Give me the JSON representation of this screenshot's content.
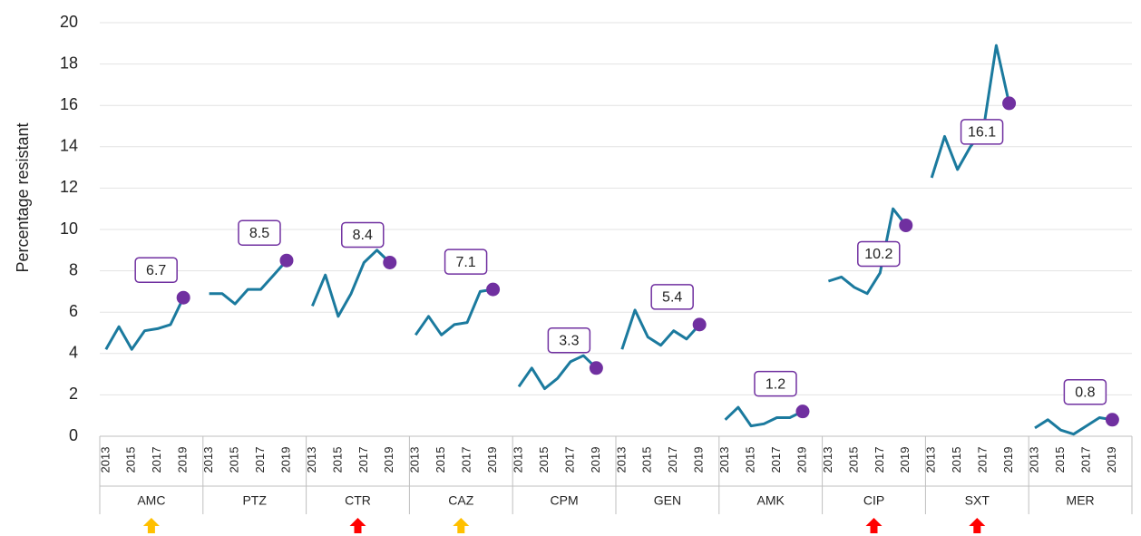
{
  "chart_data": {
    "type": "line",
    "y_label": "Percentage resistant",
    "ylim": [
      0,
      20
    ],
    "yticks": [
      0,
      2,
      4,
      6,
      8,
      10,
      12,
      14,
      16,
      18,
      20
    ],
    "grid": true,
    "line_color": "#1b7a9e",
    "point_color": "#7030a0",
    "categories": [
      "2013",
      null,
      "2015",
      null,
      "2017",
      null,
      "2019"
    ],
    "groups": [
      {
        "name": "AMC",
        "values": [
          4.2,
          5.3,
          4.2,
          5.1,
          5.2,
          5.4,
          6.7
        ],
        "arrow_color": "#ffc000"
      },
      {
        "name": "PTZ",
        "values": [
          6.9,
          6.9,
          6.4,
          7.1,
          7.1,
          7.8,
          8.5
        ]
      },
      {
        "name": "CTR",
        "values": [
          6.3,
          7.8,
          5.8,
          6.9,
          8.4,
          9.0,
          8.4
        ],
        "arrow_color": "#ff0000"
      },
      {
        "name": "CAZ",
        "values": [
          4.9,
          5.8,
          4.9,
          5.4,
          5.5,
          7.0,
          7.1
        ],
        "arrow_color": "#ffc000"
      },
      {
        "name": "CPM",
        "values": [
          2.4,
          3.3,
          2.3,
          2.8,
          3.6,
          3.9,
          3.3
        ]
      },
      {
        "name": "GEN",
        "values": [
          4.2,
          6.1,
          4.8,
          4.4,
          5.1,
          4.7,
          5.4
        ]
      },
      {
        "name": "AMK",
        "values": [
          0.8,
          1.4,
          0.5,
          0.6,
          0.9,
          0.9,
          1.2
        ]
      },
      {
        "name": "CIP",
        "values": [
          7.5,
          7.7,
          7.2,
          6.9,
          7.9,
          11.0,
          10.2
        ],
        "arrow_color": "#ff0000"
      },
      {
        "name": "SXT",
        "values": [
          12.5,
          14.5,
          12.9,
          14.0,
          14.8,
          18.9,
          16.1
        ],
        "arrow_color": "#ff0000"
      },
      {
        "name": "MER",
        "values": [
          0.4,
          0.8,
          0.3,
          0.1,
          0.5,
          0.9,
          0.8
        ]
      }
    ]
  }
}
